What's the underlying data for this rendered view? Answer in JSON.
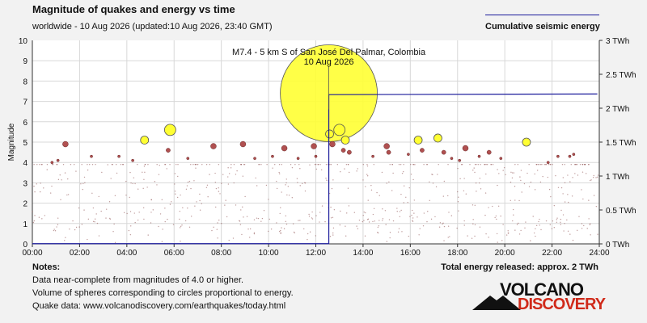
{
  "header": {
    "title": "Magnitude of quakes and energy vs time",
    "subtitle": "worldwide - 10 Aug 2026 (updated:10 Aug 2026, 23:40 GMT)",
    "energy_legend": "Cumulative seismic energy"
  },
  "footer": {
    "notes_title": "Notes:",
    "note_1": "Data near-complete from magnitudes of 4.0 or higher.",
    "note_2": "Volume of spheres corresponding to circles proportional to energy.",
    "note_3": "Quake data: www.volcanodiscovery.com/earthquakes/today.html",
    "total_energy": "Total energy released: approx. 2 TWh"
  },
  "logo": {
    "top": "VOLCANO",
    "bottom": "DISCOVERY"
  },
  "colors": {
    "plot_background": "#ffffff",
    "grid": "#d8d8d8",
    "large_quake": "#ffff33",
    "small_quake": "#b05050",
    "energy_line": "#1a1a9a"
  },
  "chart_data": {
    "type": "scatter",
    "ylabel": "Magnitude",
    "xlim": [
      "00:00",
      "24:00"
    ],
    "x_ticks": [
      "00:00",
      "02:00",
      "04:00",
      "06:00",
      "08:00",
      "10:00",
      "12:00",
      "14:00",
      "16:00",
      "18:00",
      "20:00",
      "22:00",
      "24:00"
    ],
    "ylim": [
      0,
      10
    ],
    "y_ticks": [
      "0",
      "1",
      "2",
      "3",
      "4",
      "5",
      "6",
      "7",
      "8",
      "9",
      "10"
    ],
    "y2_ticks": [
      "0 TWh",
      "0.5 TWh",
      "1 TWh",
      "1.5 TWh",
      "2 TWh",
      "2.5 TWh",
      "3 TWh"
    ],
    "y2lim": [
      0,
      3
    ],
    "grid": true,
    "annotation": {
      "text_1": "M7.4 - 5 km S of San José Del Palmar, Colombia",
      "text_2": "10 Aug 2026",
      "time": "12:33",
      "magnitude": 7.4
    },
    "quakes": [
      {
        "time": "01:24",
        "mag": 4.9
      },
      {
        "time": "04:45",
        "mag": 5.1
      },
      {
        "time": "05:45",
        "mag": 4.6
      },
      {
        "time": "05:50",
        "mag": 5.6
      },
      {
        "time": "07:40",
        "mag": 4.8
      },
      {
        "time": "08:55",
        "mag": 4.9
      },
      {
        "time": "10:40",
        "mag": 4.7
      },
      {
        "time": "11:55",
        "mag": 4.8
      },
      {
        "time": "12:33",
        "mag": 7.4
      },
      {
        "time": "12:35",
        "mag": 5.4
      },
      {
        "time": "12:42",
        "mag": 4.9
      },
      {
        "time": "13:00",
        "mag": 5.6
      },
      {
        "time": "13:15",
        "mag": 5.1
      },
      {
        "time": "13:10",
        "mag": 4.6
      },
      {
        "time": "13:25",
        "mag": 4.5
      },
      {
        "time": "14:25",
        "mag": 4.3
      },
      {
        "time": "15:00",
        "mag": 4.8
      },
      {
        "time": "15:05",
        "mag": 4.5
      },
      {
        "time": "15:55",
        "mag": 4.4
      },
      {
        "time": "16:20",
        "mag": 5.1
      },
      {
        "time": "16:30",
        "mag": 4.6
      },
      {
        "time": "17:10",
        "mag": 5.2
      },
      {
        "time": "17:25",
        "mag": 4.5
      },
      {
        "time": "17:45",
        "mag": 4.2
      },
      {
        "time": "18:05",
        "mag": 4.1
      },
      {
        "time": "18:20",
        "mag": 4.7
      },
      {
        "time": "18:55",
        "mag": 4.3
      },
      {
        "time": "19:20",
        "mag": 4.5
      },
      {
        "time": "20:55",
        "mag": 5.0
      },
      {
        "time": "22:15",
        "mag": 4.3
      },
      {
        "time": "22:45",
        "mag": 4.3
      },
      {
        "time": "22:55",
        "mag": 4.4
      },
      {
        "time": "02:30",
        "mag": 4.3
      },
      {
        "time": "03:40",
        "mag": 4.3
      },
      {
        "time": "04:15",
        "mag": 4.1
      },
      {
        "time": "00:50",
        "mag": 4.0
      },
      {
        "time": "01:05",
        "mag": 4.1
      },
      {
        "time": "06:35",
        "mag": 4.2
      },
      {
        "time": "09:25",
        "mag": 4.2
      },
      {
        "time": "10:10",
        "mag": 4.3
      },
      {
        "time": "11:15",
        "mag": 4.2
      },
      {
        "time": "12:00",
        "mag": 4.3
      },
      {
        "time": "19:50",
        "mag": 4.2
      },
      {
        "time": "21:50",
        "mag": 4.0
      }
    ],
    "energy": {
      "before_twh": 0.003,
      "step_time": "12:33",
      "after_twh": 2.2,
      "end_twh": 2.21
    }
  }
}
